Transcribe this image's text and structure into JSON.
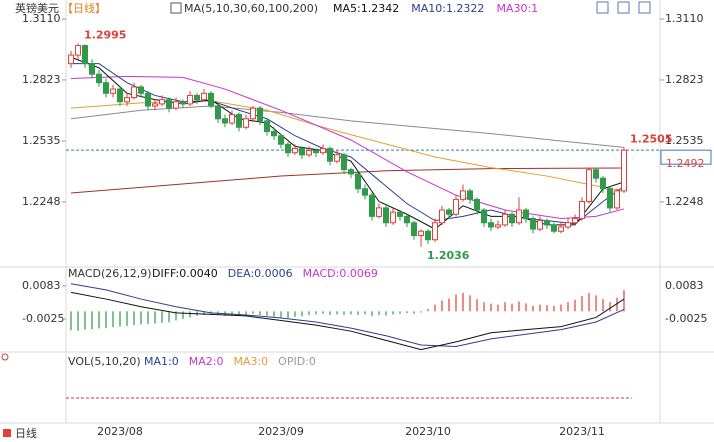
{
  "chart_data": {
    "type": "candlestick",
    "title": "英镑美元",
    "period": "【日线】",
    "indicator": "MA(5,10,30,60,100,200)",
    "up_color": "#e0403a",
    "down_color": "#2e9a4a",
    "categories": [
      null,
      null,
      null,
      null,
      null,
      null,
      null,
      "2023/08",
      null,
      null,
      null,
      null,
      null,
      null,
      null,
      null,
      null,
      null,
      null,
      null,
      null,
      null,
      null,
      null,
      null,
      null,
      null,
      null,
      null,
      null,
      "2023/09",
      null,
      null,
      null,
      null,
      null,
      null,
      null,
      null,
      null,
      null,
      null,
      null,
      null,
      null,
      null,
      null,
      null,
      null,
      null,
      null,
      "2023/10",
      null,
      null,
      null,
      null,
      null,
      null,
      null,
      null,
      null,
      null,
      null,
      null,
      null,
      null,
      null,
      null,
      null,
      null,
      null,
      null,
      null,
      "2023/11",
      null,
      null,
      null,
      null,
      null,
      null
    ],
    "candles": [
      [
        1.29,
        1.296,
        1.288,
        1.294
      ],
      [
        1.294,
        1.2995,
        1.292,
        1.2985
      ],
      [
        1.2985,
        1.299,
        1.288,
        1.29
      ],
      [
        1.29,
        1.292,
        1.283,
        1.285
      ],
      [
        1.285,
        1.287,
        1.279,
        1.281
      ],
      [
        1.281,
        1.283,
        1.274,
        1.276
      ],
      [
        1.276,
        1.28,
        1.274,
        1.278
      ],
      [
        1.278,
        1.279,
        1.27,
        1.272
      ],
      [
        1.272,
        1.276,
        1.27,
        1.274
      ],
      [
        1.274,
        1.281,
        1.273,
        1.279
      ],
      [
        1.279,
        1.28,
        1.274,
        1.276
      ],
      [
        1.276,
        1.277,
        1.268,
        1.27
      ],
      [
        1.27,
        1.273,
        1.268,
        1.271
      ],
      [
        1.271,
        1.275,
        1.27,
        1.273
      ],
      [
        1.273,
        1.274,
        1.267,
        1.269
      ],
      [
        1.269,
        1.274,
        1.268,
        1.272
      ],
      [
        1.272,
        1.273,
        1.269,
        1.271
      ],
      [
        1.271,
        1.277,
        1.27,
        1.275
      ],
      [
        1.275,
        1.276,
        1.271,
        1.273
      ],
      [
        1.273,
        1.278,
        1.272,
        1.276
      ],
      [
        1.276,
        1.277,
        1.269,
        1.27
      ],
      [
        1.27,
        1.271,
        1.262,
        1.264
      ],
      [
        1.264,
        1.266,
        1.26,
        1.262
      ],
      [
        1.262,
        1.268,
        1.261,
        1.266
      ],
      [
        1.266,
        1.267,
        1.258,
        1.26
      ],
      [
        1.26,
        1.266,
        1.259,
        1.264
      ],
      [
        1.264,
        1.27,
        1.263,
        1.269
      ],
      [
        1.269,
        1.27,
        1.261,
        1.263
      ],
      [
        1.263,
        1.264,
        1.256,
        1.258
      ],
      [
        1.258,
        1.26,
        1.254,
        1.256
      ],
      [
        1.256,
        1.257,
        1.25,
        1.252
      ],
      [
        1.252,
        1.253,
        1.246,
        1.248
      ],
      [
        1.248,
        1.252,
        1.247,
        1.25
      ],
      [
        1.25,
        1.251,
        1.245,
        1.247
      ],
      [
        1.247,
        1.251,
        1.246,
        1.249
      ],
      [
        1.249,
        1.25,
        1.246,
        1.248
      ],
      [
        1.248,
        1.252,
        1.247,
        1.25
      ],
      [
        1.25,
        1.251,
        1.242,
        1.244
      ],
      [
        1.244,
        1.249,
        1.243,
        1.247
      ],
      [
        1.247,
        1.248,
        1.238,
        1.24
      ],
      [
        1.24,
        1.241,
        1.236,
        1.238
      ],
      [
        1.238,
        1.239,
        1.229,
        1.231
      ],
      [
        1.231,
        1.233,
        1.226,
        1.228
      ],
      [
        1.228,
        1.229,
        1.216,
        1.218
      ],
      [
        1.218,
        1.224,
        1.217,
        1.222
      ],
      [
        1.222,
        1.223,
        1.213,
        1.215
      ],
      [
        1.215,
        1.222,
        1.214,
        1.22
      ],
      [
        1.22,
        1.221,
        1.216,
        1.218
      ],
      [
        1.218,
        1.219,
        1.213,
        1.215
      ],
      [
        1.215,
        1.216,
        1.207,
        1.209
      ],
      [
        1.209,
        1.212,
        1.2036,
        1.211
      ],
      [
        1.211,
        1.212,
        1.205,
        1.207
      ],
      [
        1.207,
        1.217,
        1.206,
        1.215
      ],
      [
        1.215,
        1.223,
        1.214,
        1.221
      ],
      [
        1.221,
        1.222,
        1.217,
        1.219
      ],
      [
        1.219,
        1.228,
        1.218,
        1.226
      ],
      [
        1.226,
        1.233,
        1.225,
        1.23
      ],
      [
        1.23,
        1.231,
        1.224,
        1.226
      ],
      [
        1.226,
        1.227,
        1.219,
        1.221
      ],
      [
        1.221,
        1.222,
        1.213,
        1.215
      ],
      [
        1.215,
        1.217,
        1.211,
        1.213
      ],
      [
        1.213,
        1.216,
        1.212,
        1.214
      ],
      [
        1.214,
        1.221,
        1.213,
        1.219
      ],
      [
        1.219,
        1.22,
        1.213,
        1.215
      ],
      [
        1.215,
        1.227,
        1.214,
        1.221
      ],
      [
        1.221,
        1.222,
        1.215,
        1.217
      ],
      [
        1.217,
        1.218,
        1.21,
        1.212
      ],
      [
        1.212,
        1.218,
        1.211,
        1.216
      ],
      [
        1.216,
        1.217,
        1.212,
        1.214
      ],
      [
        1.214,
        1.215,
        1.21,
        1.211
      ],
      [
        1.211,
        1.215,
        1.21,
        1.213
      ],
      [
        1.213,
        1.217,
        1.212,
        1.215
      ],
      [
        1.215,
        1.219,
        1.214,
        1.217
      ],
      [
        1.217,
        1.227,
        1.216,
        1.225
      ],
      [
        1.225,
        1.241,
        1.224,
        1.24
      ],
      [
        1.24,
        1.241,
        1.234,
        1.236
      ],
      [
        1.236,
        1.237,
        1.229,
        1.231
      ],
      [
        1.231,
        1.232,
        1.22,
        1.222
      ],
      [
        1.222,
        1.231,
        1.221,
        1.23
      ],
      [
        1.23,
        1.2505,
        1.229,
        1.2492
      ]
    ],
    "ylim": [
      1.1965,
      1.3162
    ],
    "yticks": [
      {
        "value": 1.311,
        "label": "1.3110"
      },
      1.2823,
      1.2535,
      1.2248
    ],
    "series": [
      {
        "name": "MA200",
        "color": "#a0302a",
        "x": [
          0,
          15,
          30,
          45,
          60,
          79
        ],
        "values": [
          1.229,
          1.233,
          1.237,
          1.2395,
          1.2405,
          1.2408
        ]
      },
      {
        "name": "MA100",
        "color": "#8a8a8a",
        "x": [
          0,
          10,
          20,
          30,
          40,
          50,
          60,
          70,
          79
        ],
        "values": [
          1.264,
          1.268,
          1.27,
          1.267,
          1.263,
          1.26,
          1.257,
          1.2535,
          1.2505
        ]
      },
      {
        "name": "MA60",
        "color": "#e0a030",
        "x": [
          0,
          10,
          20,
          28,
          36,
          44,
          52,
          60,
          68,
          74,
          79
        ],
        "values": [
          1.269,
          1.2715,
          1.2725,
          1.268,
          1.26,
          1.253,
          1.246,
          1.241,
          1.237,
          1.233,
          1.23
        ]
      },
      {
        "name": "MA30",
        "color": "#cc33cc",
        "legend": "MA30:1",
        "x": [
          0,
          8,
          16,
          22,
          30,
          40,
          48,
          55,
          62,
          70,
          75,
          79
        ],
        "values": [
          1.283,
          1.284,
          1.2835,
          1.278,
          1.268,
          1.254,
          1.239,
          1.228,
          1.221,
          1.217,
          1.218,
          1.2215
        ]
      },
      {
        "name": "MA10",
        "color": "#2a3f8f",
        "legend": "MA10:1.2322",
        "x": [
          0,
          4,
          8,
          12,
          16,
          20,
          24,
          28,
          32,
          36,
          40,
          44,
          48,
          52,
          56,
          60,
          64,
          68,
          72,
          76,
          79
        ],
        "values": [
          1.29,
          1.29,
          1.281,
          1.275,
          1.272,
          1.2725,
          1.268,
          1.264,
          1.256,
          1.25,
          1.246,
          1.235,
          1.224,
          1.216,
          1.218,
          1.221,
          1.2175,
          1.216,
          1.2145,
          1.225,
          1.2322
        ]
      },
      {
        "name": "MA5",
        "color": "#111111",
        "legend": "MA5:1.2342",
        "x": [
          0,
          4,
          8,
          12,
          16,
          20,
          24,
          28,
          32,
          36,
          40,
          44,
          48,
          52,
          56,
          60,
          64,
          68,
          72,
          76,
          79
        ],
        "values": [
          1.293,
          1.288,
          1.276,
          1.273,
          1.271,
          1.273,
          1.264,
          1.262,
          1.251,
          1.249,
          1.244,
          1.225,
          1.219,
          1.212,
          1.223,
          1.218,
          1.218,
          1.214,
          1.214,
          1.231,
          1.2342
        ]
      }
    ],
    "annotations": [
      {
        "x": 1,
        "y": 1.2995,
        "color": "#e0403a"
      },
      {
        "x": 50,
        "y": 1.2036,
        "color": "#2e9a4a"
      },
      {
        "x": 79,
        "y": 1.2505,
        "color": "#e0403a"
      }
    ],
    "last_price": 1.2492,
    "last_price_color": "#3a78c8",
    "macd": {
      "title": "MACD(26,12,9)",
      "ylim": [
        -0.0133,
        0.0135
      ],
      "yticks": [
        0.0083,
        -0.0025
      ],
      "legend": [
        {
          "text": "DIFF:0.0040",
          "color": "#111111"
        },
        {
          "text": "DEA:0.0006",
          "color": "#2a3f8f"
        },
        {
          "text": "MACD:0.0069",
          "color": "#cc33cc"
        }
      ],
      "histogram": [
        -0.0062,
        -0.0064,
        -0.006,
        -0.0058,
        -0.0056,
        -0.0055,
        -0.0052,
        -0.005,
        -0.0048,
        -0.0045,
        -0.0043,
        -0.0042,
        -0.004,
        -0.0038,
        -0.0036,
        -0.003,
        -0.0025,
        -0.002,
        -0.0015,
        -0.0012,
        -0.001,
        -0.0012,
        -0.0015,
        -0.0012,
        -0.0014,
        -0.001,
        -0.0008,
        -0.0012,
        -0.0015,
        -0.0018,
        -0.002,
        -0.0022,
        -0.0018,
        -0.0016,
        -0.0012,
        -0.001,
        -0.0008,
        -0.0012,
        -0.001,
        -0.0012,
        -0.001,
        -0.0012,
        -0.001,
        -0.0015,
        -0.0012,
        -0.0014,
        -0.001,
        -0.0008,
        -0.0006,
        -0.0008,
        -0.0004,
        0.0008,
        0.0022,
        0.0035,
        0.0042,
        0.0055,
        0.006,
        0.0052,
        0.004,
        0.003,
        0.0025,
        0.0022,
        0.003,
        0.0025,
        0.0032,
        0.0026,
        0.0018,
        0.0022,
        0.002,
        0.0018,
        0.0022,
        0.003,
        0.0038,
        0.005,
        0.006,
        0.0052,
        0.004,
        0.003,
        0.0045,
        0.0069
      ],
      "lines": [
        {
          "name": "DEA",
          "color": "#2a3f8f",
          "x": [
            0,
            5,
            10,
            15,
            20,
            25,
            30,
            35,
            40,
            45,
            50,
            55,
            60,
            65,
            70,
            75,
            79
          ],
          "values": [
            0.009,
            0.007,
            0.004,
            0.0015,
            -0.0005,
            -0.0012,
            -0.0022,
            -0.0035,
            -0.0055,
            -0.008,
            -0.011,
            -0.0115,
            -0.009,
            -0.0075,
            -0.006,
            -0.0035,
            0.0006
          ]
        },
        {
          "name": "DIFF",
          "color": "#111111",
          "x": [
            0,
            5,
            10,
            15,
            20,
            25,
            30,
            35,
            40,
            45,
            50,
            55,
            60,
            65,
            70,
            75,
            79
          ],
          "values": [
            0.0062,
            0.004,
            0.0015,
            -0.0005,
            -0.001,
            -0.0015,
            -0.003,
            -0.0045,
            -0.0065,
            -0.0095,
            -0.0125,
            -0.01,
            -0.007,
            -0.006,
            -0.005,
            -0.002,
            0.004
          ]
        }
      ]
    },
    "volume": {
      "title": "VOL(5,10,20)",
      "legend": [
        {
          "text": "MA1:0",
          "color": "#2a3f8f"
        },
        {
          "text": "MA2:0",
          "color": "#cc33cc"
        },
        {
          "text": "MA3:0",
          "color": "#e0a030"
        },
        {
          "text": "OPID:0",
          "color": "#999999"
        }
      ]
    },
    "tab": "日线"
  }
}
